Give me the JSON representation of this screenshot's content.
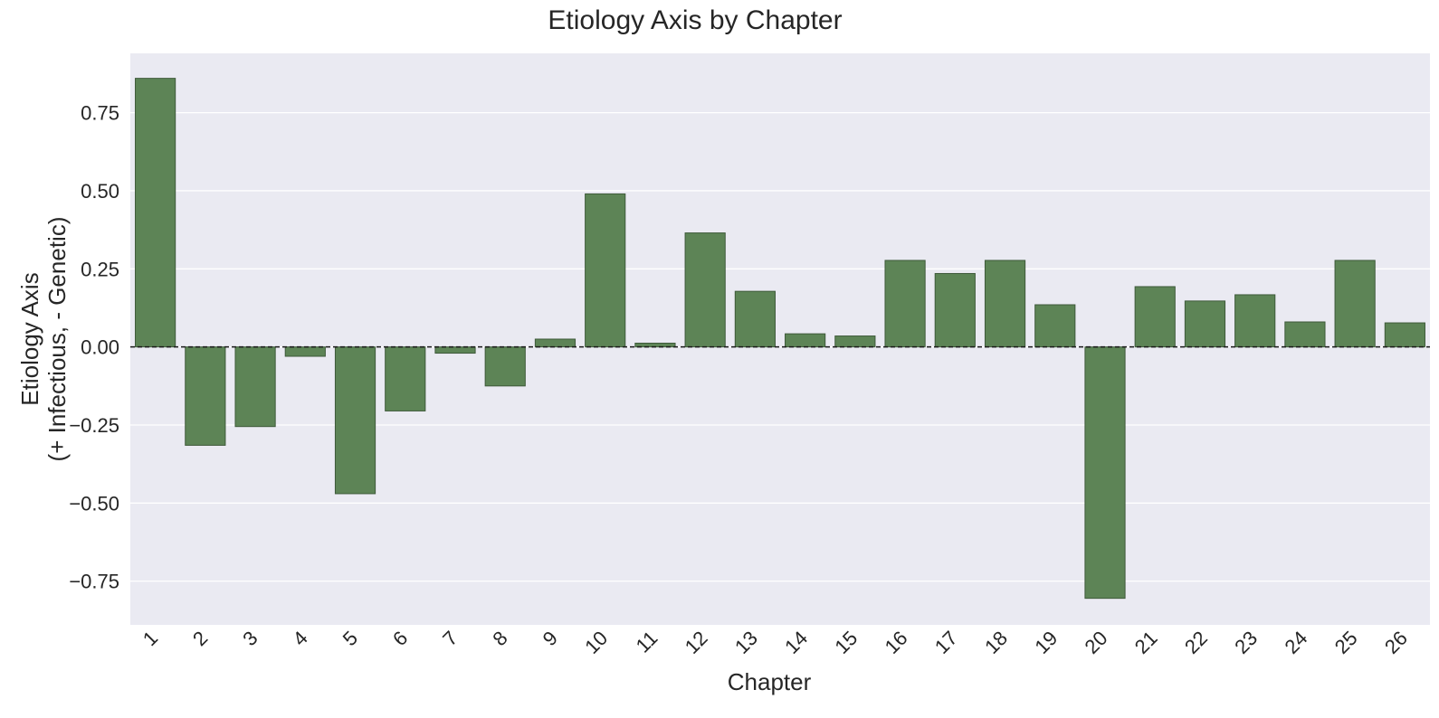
{
  "chart_data": {
    "type": "bar",
    "title": "Etiology Axis by Chapter",
    "xlabel": "Chapter",
    "ylabel_lines": [
      "Etiology Axis",
      "(+ Infectious, - Genetic)"
    ],
    "categories": [
      "1",
      "2",
      "3",
      "4",
      "5",
      "6",
      "7",
      "8",
      "9",
      "10",
      "11",
      "12",
      "13",
      "14",
      "15",
      "16",
      "17",
      "18",
      "19",
      "20",
      "21",
      "22",
      "23",
      "24",
      "25",
      "26"
    ],
    "values": [
      0.86,
      -0.315,
      -0.255,
      -0.03,
      -0.47,
      -0.205,
      -0.02,
      -0.125,
      0.025,
      0.49,
      0.012,
      0.365,
      0.178,
      0.042,
      0.035,
      0.277,
      0.235,
      0.277,
      0.135,
      -0.805,
      0.193,
      0.147,
      0.167,
      0.08,
      0.277,
      0.077
    ],
    "ylim": [
      -0.89,
      0.94
    ],
    "yticks": [
      -0.75,
      -0.5,
      -0.25,
      0.0,
      0.25,
      0.5,
      0.75
    ],
    "ytick_labels": [
      "−0.75",
      "−0.50",
      "−0.25",
      "0.00",
      "0.25",
      "0.50",
      "0.75"
    ],
    "grid": true,
    "zero_line": "dashed",
    "colors": {
      "bar_fill": "#5d8456",
      "bar_edge": "#3e5a3a",
      "plot_background": "#eaeaf2",
      "grid": "#ffffff",
      "zero_line": "#1a1a1a"
    }
  }
}
